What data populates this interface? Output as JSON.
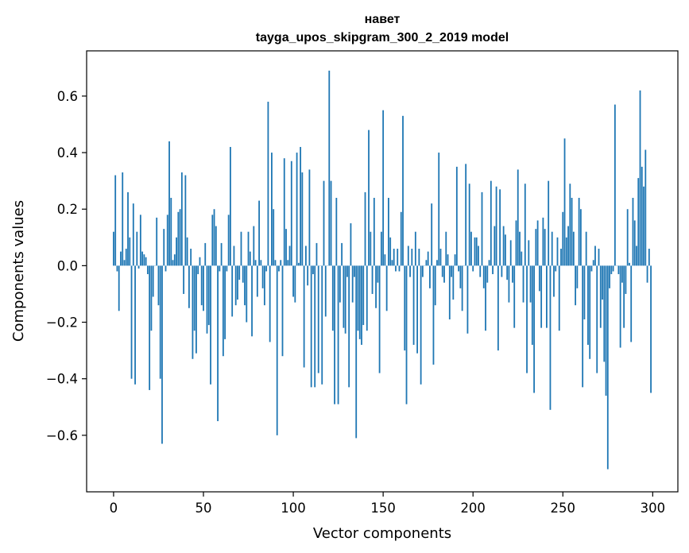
{
  "chart_data": {
    "type": "bar",
    "title": "навет",
    "subtitle": "tayga_upos_skipgram_300_2_2019 model",
    "xlabel": "Vector components",
    "ylabel": "Components values",
    "xlim": [
      -15,
      314
    ],
    "ylim": [
      -0.8,
      0.76
    ],
    "x_ticks": [
      0,
      50,
      100,
      150,
      200,
      250,
      300
    ],
    "x_tick_labels": [
      "0",
      "50",
      "100",
      "150",
      "200",
      "250",
      "300"
    ],
    "y_ticks": [
      -0.6,
      -0.4,
      -0.2,
      0.0,
      0.2,
      0.4,
      0.6
    ],
    "y_tick_labels": [
      "−0.6",
      "−0.4",
      "−0.2",
      "0.0",
      "0.2",
      "0.4",
      "0.6"
    ],
    "bar_color": "#1f77b4",
    "values": [
      0.12,
      0.32,
      -0.02,
      -0.16,
      0.05,
      0.33,
      0.02,
      0.06,
      0.26,
      0.1,
      -0.4,
      0.22,
      -0.42,
      0.12,
      -0.01,
      0.18,
      0.05,
      0.04,
      0.03,
      -0.03,
      -0.44,
      -0.23,
      -0.11,
      0.0,
      0.17,
      -0.14,
      -0.4,
      -0.63,
      0.13,
      -0.02,
      0.18,
      0.44,
      0.24,
      0.02,
      0.04,
      0.1,
      0.19,
      0.2,
      0.33,
      -0.1,
      0.32,
      0.1,
      -0.15,
      0.06,
      -0.33,
      -0.23,
      -0.31,
      -0.03,
      0.03,
      -0.14,
      -0.16,
      0.08,
      -0.24,
      -0.21,
      -0.42,
      0.18,
      0.2,
      0.14,
      -0.55,
      -0.02,
      0.08,
      -0.32,
      -0.26,
      -0.02,
      0.18,
      0.42,
      -0.18,
      0.07,
      -0.14,
      -0.12,
      -0.05,
      0.12,
      -0.06,
      -0.14,
      -0.2,
      0.12,
      0.05,
      -0.25,
      0.14,
      0.02,
      -0.11,
      0.23,
      0.02,
      -0.08,
      -0.14,
      -0.02,
      0.58,
      -0.27,
      0.4,
      0.2,
      0.02,
      -0.6,
      -0.02,
      0.02,
      -0.32,
      0.38,
      0.13,
      0.02,
      0.07,
      0.37,
      -0.11,
      -0.13,
      0.4,
      0.01,
      0.42,
      0.33,
      -0.36,
      0.07,
      -0.07,
      0.34,
      -0.43,
      -0.03,
      -0.43,
      0.08,
      -0.38,
      0.0,
      -0.42,
      0.3,
      -0.18,
      0.0,
      0.69,
      0.3,
      -0.23,
      -0.49,
      0.24,
      -0.49,
      -0.13,
      0.08,
      -0.22,
      -0.24,
      -0.04,
      -0.43,
      0.15,
      -0.13,
      -0.04,
      -0.61,
      -0.23,
      -0.26,
      -0.28,
      -0.21,
      0.26,
      -0.23,
      0.48,
      0.12,
      -0.1,
      0.24,
      -0.15,
      -0.06,
      -0.38,
      0.12,
      0.55,
      0.04,
      -0.16,
      0.24,
      0.1,
      0.02,
      0.06,
      -0.02,
      0.06,
      -0.02,
      0.19,
      0.53,
      -0.3,
      -0.49,
      0.07,
      -0.04,
      0.06,
      -0.28,
      0.12,
      -0.31,
      0.06,
      -0.42,
      -0.04,
      0.0,
      0.02,
      0.05,
      -0.08,
      0.22,
      -0.35,
      -0.14,
      0.02,
      0.4,
      0.06,
      -0.04,
      -0.06,
      0.12,
      0.04,
      -0.19,
      -0.04,
      -0.12,
      0.04,
      0.35,
      -0.02,
      -0.08,
      -0.16,
      0.0,
      0.36,
      -0.24,
      0.29,
      0.12,
      -0.02,
      0.1,
      0.1,
      0.07,
      -0.04,
      0.26,
      -0.08,
      -0.23,
      -0.06,
      0.02,
      0.3,
      -0.03,
      0.14,
      0.28,
      -0.3,
      0.27,
      -0.04,
      0.14,
      0.11,
      -0.05,
      -0.13,
      0.09,
      -0.06,
      -0.22,
      0.16,
      0.34,
      0.12,
      0.05,
      -0.13,
      0.29,
      -0.38,
      0.09,
      -0.13,
      -0.28,
      -0.45,
      0.13,
      0.16,
      -0.09,
      -0.22,
      0.17,
      0.13,
      -0.22,
      0.3,
      -0.51,
      0.12,
      -0.11,
      -0.02,
      0.1,
      -0.23,
      0.06,
      0.19,
      0.45,
      0.1,
      0.14,
      0.29,
      0.24,
      0.12,
      -0.14,
      -0.08,
      0.24,
      0.2,
      -0.43,
      -0.19,
      0.12,
      -0.28,
      -0.33,
      -0.02,
      0.02,
      0.07,
      -0.38,
      0.06,
      -0.22,
      -0.12,
      -0.34,
      -0.46,
      -0.72,
      -0.08,
      -0.03,
      -0.02,
      0.57,
      0.0,
      -0.03,
      -0.29,
      -0.06,
      -0.22,
      -0.1,
      0.2,
      0.01,
      -0.27,
      0.24,
      0.16,
      0.07,
      0.31,
      0.62,
      0.35,
      0.28,
      0.41,
      -0.06,
      0.06,
      -0.45
    ]
  }
}
